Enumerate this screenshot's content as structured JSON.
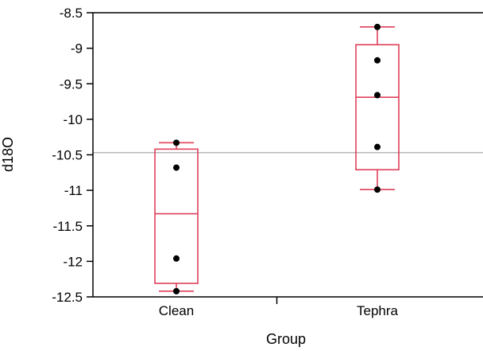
{
  "chart_data": {
    "type": "box",
    "xlabel": "Group",
    "ylabel": "d18O",
    "ylim": [
      -12.5,
      -8.5
    ],
    "yticks": [
      -8.5,
      -9,
      -9.5,
      -10,
      -10.5,
      -11,
      -11.5,
      -12,
      -12.5
    ],
    "ytick_labels": [
      "-8.5",
      "-9",
      "-9.5",
      "-10",
      "-10.5",
      "-11",
      "-11.5",
      "-12",
      "-12.5"
    ],
    "categories": [
      "Clean",
      "Tephra"
    ],
    "box_color": "#e0405a",
    "reference_line": {
      "y": -10.47,
      "color": "#a0a0a0"
    },
    "groups": [
      {
        "name": "Clean",
        "whisker_low": -12.42,
        "q1": -12.31,
        "median": -11.33,
        "q3": -10.42,
        "whisker_high": -10.33,
        "points": [
          -10.33,
          -10.68,
          -11.96,
          -12.42
        ]
      },
      {
        "name": "Tephra",
        "whisker_low": -10.99,
        "q1": -10.71,
        "median": -9.69,
        "q3": -8.95,
        "whisker_high": -8.7,
        "points": [
          -8.7,
          -9.17,
          -9.66,
          -10.39,
          -10.99
        ]
      }
    ]
  }
}
